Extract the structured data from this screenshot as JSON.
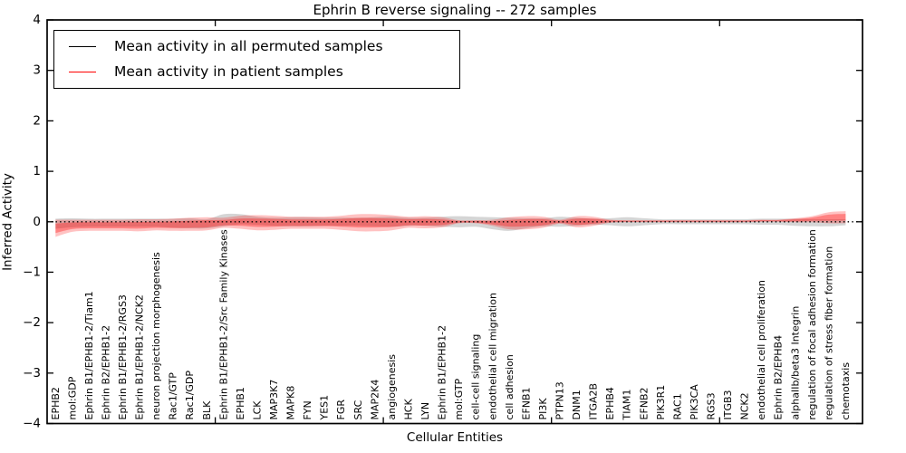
{
  "title": "Ephrin B reverse signaling -- 272 samples",
  "axes": {
    "xlabel": "Cellular Entities",
    "ylabel": "Inferred Activity",
    "ytick_labels": [
      "4",
      "3",
      "2",
      "1",
      "0",
      "−1",
      "−2",
      "−3",
      "−4"
    ]
  },
  "legend": {
    "items": [
      {
        "label": "Mean activity in all permuted samples",
        "color": "#000000"
      },
      {
        "label": "Mean activity in patient samples",
        "color": "#ff0000"
      }
    ]
  },
  "colors": {
    "permuted_line": "#000000",
    "permuted_band": "#888888",
    "patient_line": "#ff0000",
    "patient_band": "#ff0000",
    "zero_line": "#000000",
    "frame": "#000000"
  },
  "chart_data": {
    "type": "line",
    "title": "Ephrin B reverse signaling -- 272 samples",
    "xlabel": "Cellular Entities",
    "ylabel": "Inferred Activity",
    "ylim": [
      -4,
      4
    ],
    "yticks": [
      4,
      3,
      2,
      1,
      0,
      -1,
      -2,
      -3,
      -4
    ],
    "grid": false,
    "legend_position": "upper left",
    "zero_reference_line": true,
    "categories": [
      "EPHB2",
      "mol:GDP",
      "Ephrin B1/EPHB1-2/Tiam1",
      "Ephrin B2/EPHB1-2",
      "Ephrin B1/EPHB1-2/RGS3",
      "Ephrin B1/EPHB1-2/NCK2",
      "neuron projection morphogenesis",
      "Rac1/GTP",
      "Rac1/GDP",
      "BLK",
      "Ephrin B1/EPHB1-2/Src Family Kinases",
      "EPHB1",
      "LCK",
      "MAP3K7",
      "MAPK8",
      "FYN",
      "YES1",
      "FGR",
      "SRC",
      "MAP2K4",
      "angiogenesis",
      "HCK",
      "LYN",
      "Ephrin B1/EPHB1-2",
      "mol:GTP",
      "cell-cell signaling",
      "endothelial cell migration",
      "cell adhesion",
      "EFNB1",
      "PI3K",
      "PTPN13",
      "DNM1",
      "ITGA2B",
      "EPHB4",
      "TIAM1",
      "EFNB2",
      "PIK3R1",
      "RAC1",
      "PIK3CA",
      "RGS3",
      "ITGB3",
      "NCK2",
      "endothelial cell proliferation",
      "Ephrin B2/EPHB4",
      "alphaIIb/beta3 Integrin",
      "regulation of focal adhesion formation",
      "regulation of stress fiber formation",
      "chemotaxis"
    ],
    "series": [
      {
        "name": "Mean activity in all permuted samples",
        "color": "#000000",
        "values": [
          -0.04,
          -0.02,
          -0.02,
          -0.02,
          -0.02,
          -0.02,
          -0.02,
          -0.03,
          -0.03,
          -0.04,
          0.03,
          0.05,
          0.02,
          0,
          0,
          0,
          0,
          0,
          0,
          0,
          0,
          0,
          0,
          0,
          0,
          0,
          -0.03,
          -0.05,
          -0.03,
          -0.01,
          0,
          0,
          0,
          0,
          0,
          0,
          0,
          0,
          0,
          0,
          0,
          0,
          0,
          0,
          -0.01,
          -0.02,
          -0.02,
          -0.01
        ],
        "band_half_width": [
          0.1,
          0.09,
          0.08,
          0.08,
          0.08,
          0.08,
          0.08,
          0.09,
          0.1,
          0.09,
          0.12,
          0.1,
          0.08,
          0.08,
          0.09,
          0.09,
          0.08,
          0.08,
          0.08,
          0.09,
          0.1,
          0.08,
          0.08,
          0.1,
          0.11,
          0.1,
          0.12,
          0.13,
          0.1,
          0.08,
          0.1,
          0.08,
          0.06,
          0.07,
          0.09,
          0.07,
          0.05,
          0.05,
          0.05,
          0.05,
          0.05,
          0.05,
          0.06,
          0.06,
          0.07,
          0.07,
          0.07,
          0.06
        ]
      },
      {
        "name": "Mean activity in patient samples",
        "color": "#ff0000",
        "values": [
          -0.13,
          -0.08,
          -0.07,
          -0.07,
          -0.07,
          -0.07,
          -0.06,
          -0.06,
          -0.05,
          -0.04,
          -0.02,
          -0.01,
          -0.02,
          -0.02,
          -0.02,
          -0.02,
          -0.02,
          -0.02,
          -0.02,
          -0.02,
          -0.02,
          -0.01,
          -0.01,
          -0.01,
          0,
          0,
          -0.02,
          -0.03,
          -0.02,
          -0.01,
          0,
          0,
          0.01,
          0.01,
          0.01,
          0.01,
          0.01,
          0.01,
          0.01,
          0.01,
          0.01,
          0.01,
          0.02,
          0.02,
          0.03,
          0.05,
          0.08,
          0.09
        ],
        "band_half_width": [
          0.17,
          0.12,
          0.11,
          0.11,
          0.11,
          0.12,
          0.11,
          0.12,
          0.13,
          0.13,
          0.1,
          0.13,
          0.15,
          0.14,
          0.12,
          0.12,
          0.12,
          0.14,
          0.17,
          0.17,
          0.15,
          0.11,
          0.12,
          0.1,
          0.03,
          0.03,
          0.06,
          0.12,
          0.13,
          0.11,
          0.04,
          0.11,
          0.09,
          0.03,
          0.02,
          0.02,
          0.02,
          0.02,
          0.02,
          0.02,
          0.02,
          0.02,
          0.02,
          0.02,
          0.04,
          0.06,
          0.11,
          0.12
        ]
      }
    ]
  }
}
